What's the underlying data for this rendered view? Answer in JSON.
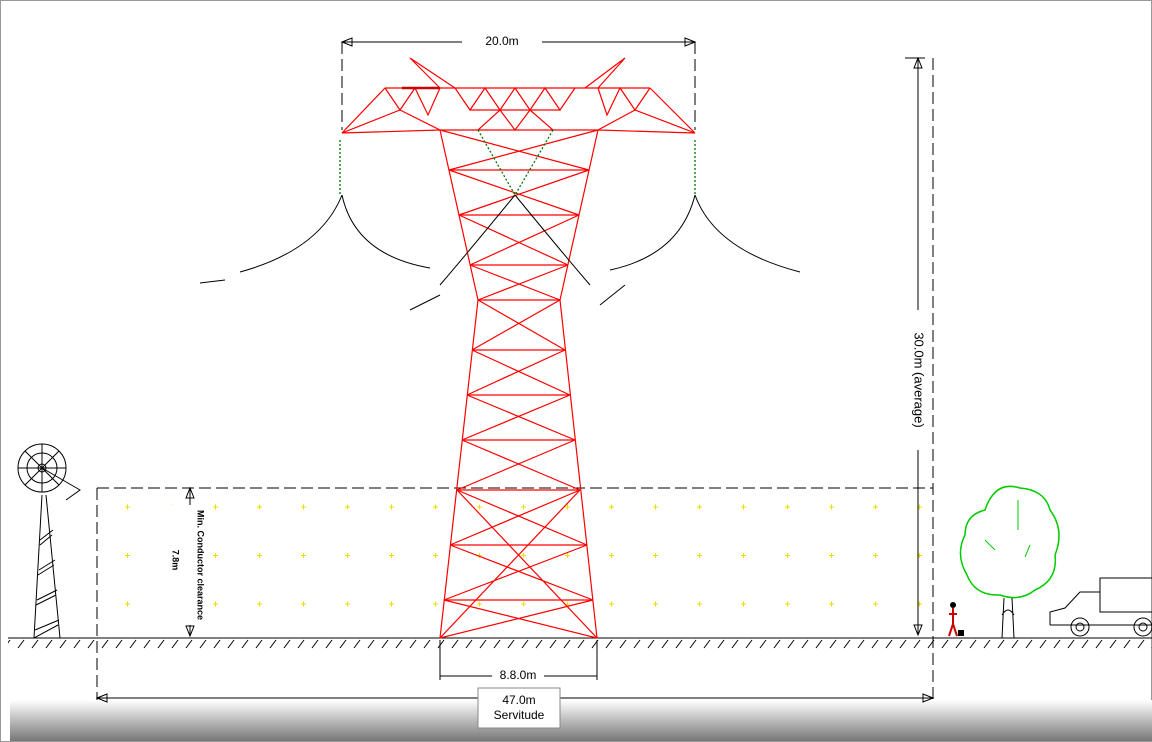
{
  "dimensions": {
    "top_width": "20.0m",
    "height": "30.0m (average)",
    "clearance_label": "Min. Conductor clearance",
    "clearance_value": "7.8m",
    "base_width": "8.8.0m",
    "servitude_width": "47.0m",
    "servitude_label": "Servitude"
  }
}
